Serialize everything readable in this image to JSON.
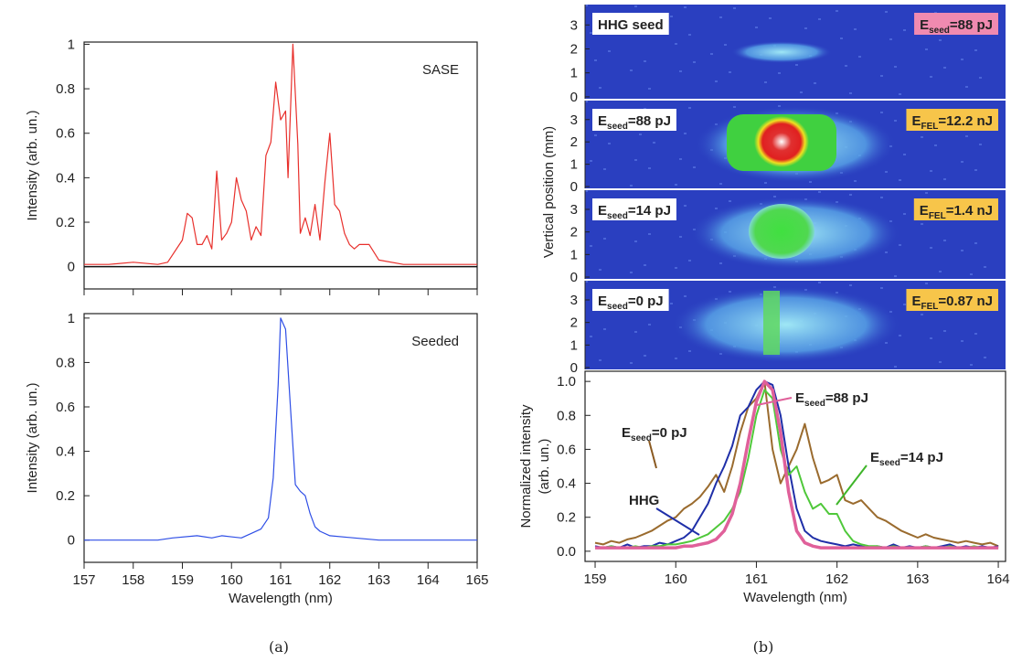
{
  "chart_data": [
    {
      "type": "line",
      "ylabel": "Intensity (arb. un.)",
      "annotation": "SASE",
      "color": "#e8302c",
      "xlim": [
        157,
        165
      ],
      "xticks": [
        157,
        158,
        159,
        160,
        161,
        162,
        163,
        164,
        165
      ],
      "xtick_labels": false,
      "ylim": [
        -0.1,
        1.01
      ],
      "yticks": [
        0,
        0.2,
        0.4,
        0.6,
        0.8,
        1
      ],
      "zero_line": true,
      "x": [
        157.0,
        157.5,
        158.0,
        158.5,
        158.7,
        159.0,
        159.1,
        159.2,
        159.3,
        159.4,
        159.5,
        159.6,
        159.7,
        159.8,
        159.9,
        160.0,
        160.1,
        160.2,
        160.3,
        160.4,
        160.5,
        160.6,
        160.7,
        160.8,
        160.9,
        161.0,
        161.1,
        161.15,
        161.25,
        161.35,
        161.4,
        161.5,
        161.6,
        161.7,
        161.8,
        161.9,
        162.0,
        162.1,
        162.2,
        162.3,
        162.4,
        162.5,
        162.6,
        162.8,
        163.0,
        163.5,
        164.0,
        164.5,
        165.0
      ],
      "values": [
        0.01,
        0.01,
        0.02,
        0.01,
        0.02,
        0.12,
        0.24,
        0.22,
        0.1,
        0.1,
        0.14,
        0.08,
        0.43,
        0.12,
        0.15,
        0.2,
        0.4,
        0.3,
        0.25,
        0.12,
        0.18,
        0.14,
        0.5,
        0.56,
        0.83,
        0.66,
        0.7,
        0.4,
        1.0,
        0.55,
        0.15,
        0.22,
        0.14,
        0.28,
        0.12,
        0.38,
        0.6,
        0.28,
        0.25,
        0.15,
        0.1,
        0.08,
        0.1,
        0.1,
        0.03,
        0.01,
        0.01,
        0.01,
        0.01
      ]
    },
    {
      "type": "line",
      "ylabel": "Intensity (arb. un.)",
      "xlabel": "Wavelength (nm)",
      "annotation": "Seeded",
      "color": "#2e4ee6",
      "xlim": [
        157,
        165
      ],
      "xticks": [
        157,
        158,
        159,
        160,
        161,
        162,
        163,
        164,
        165
      ],
      "xtick_labels": true,
      "ylim": [
        -0.1,
        1.02
      ],
      "yticks": [
        0,
        0.2,
        0.4,
        0.6,
        0.8,
        1
      ],
      "zero_line": false,
      "x": [
        157.0,
        158.5,
        158.8,
        159.3,
        159.6,
        159.8,
        160.2,
        160.4,
        160.6,
        160.75,
        160.85,
        160.95,
        161.0,
        161.1,
        161.2,
        161.3,
        161.4,
        161.5,
        161.6,
        161.7,
        161.8,
        162.0,
        162.5,
        163.0,
        165.0
      ],
      "values": [
        0,
        0,
        0.01,
        0.02,
        0.01,
        0.02,
        0.01,
        0.03,
        0.05,
        0.1,
        0.28,
        0.7,
        1.0,
        0.95,
        0.6,
        0.25,
        0.22,
        0.2,
        0.12,
        0.06,
        0.04,
        0.02,
        0.01,
        0,
        0
      ]
    },
    {
      "type": "image",
      "ylabel": "Vertical position (mm)",
      "ylim": [
        -0.08,
        3.85
      ],
      "yticks": [
        0,
        1,
        2,
        3
      ],
      "left_label": {
        "parts": [
          "HHG seed"
        ],
        "color": "#1a2a9a",
        "box": "#ffffff"
      },
      "right_label": {
        "parts": [
          "E",
          "seed",
          "=88 pJ"
        ],
        "color": "#222222",
        "box": "#f08ab0"
      }
    },
    {
      "type": "image",
      "ylim": [
        -0.08,
        3.85
      ],
      "yticks": [
        0,
        1,
        2,
        3
      ],
      "left_label": {
        "parts": [
          "E",
          "seed",
          "=88 pJ"
        ],
        "color": "#e0609a",
        "box": "#ffffff"
      },
      "right_label": {
        "parts": [
          "E",
          "FEL",
          "=12.2 nJ"
        ],
        "color": "#222222",
        "box": "#f7c54a"
      }
    },
    {
      "type": "image",
      "ylim": [
        -0.08,
        3.85
      ],
      "yticks": [
        0,
        1,
        2,
        3
      ],
      "left_label": {
        "parts": [
          "E",
          "seed",
          "=14 pJ"
        ],
        "color": "#3fb52a",
        "box": "#ffffff"
      },
      "right_label": {
        "parts": [
          "E",
          "FEL",
          "=1.4 nJ"
        ],
        "color": "#222222",
        "box": "#f7c54a"
      }
    },
    {
      "type": "image",
      "ylim": [
        -0.08,
        3.85
      ],
      "yticks": [
        0,
        1,
        2,
        3
      ],
      "left_label": {
        "parts": [
          "E",
          "seed",
          "=0 pJ"
        ],
        "color": "#8a5a22",
        "box": "#ffffff"
      },
      "right_label": {
        "parts": [
          "E",
          "FEL",
          "=0.87 nJ"
        ],
        "color": "#222222",
        "box": "#f7c54a"
      }
    },
    {
      "type": "multiline",
      "ylabel": [
        "Normalized intensity",
        "(arb. un.)"
      ],
      "xlabel": "Wavelength (nm)",
      "xlim": [
        158.875,
        164.09
      ],
      "xticks": [
        159,
        160,
        161,
        162,
        163,
        164
      ],
      "xtick_labels": true,
      "ylim": [
        -0.06,
        1.06
      ],
      "yticks": [
        {
          "value": 0,
          "label": "0.0"
        },
        0.2,
        0.4,
        0.6,
        0.8,
        {
          "value": 1,
          "label": "1.0"
        }
      ],
      "x": [
        159.0,
        159.1,
        159.2,
        159.3,
        159.4,
        159.5,
        159.6,
        159.7,
        159.8,
        159.9,
        160.0,
        160.1,
        160.2,
        160.3,
        160.4,
        160.5,
        160.6,
        160.7,
        160.8,
        160.9,
        161.0,
        161.1,
        161.2,
        161.3,
        161.4,
        161.5,
        161.6,
        161.7,
        161.8,
        161.9,
        162.0,
        162.1,
        162.2,
        162.3,
        162.4,
        162.5,
        162.6,
        162.7,
        162.8,
        162.9,
        163.0,
        163.1,
        163.2,
        163.3,
        163.4,
        163.5,
        163.6,
        163.7,
        163.8,
        163.9,
        164.0
      ],
      "series": [
        {
          "color": "#9a6b2e",
          "values": [
            0.05,
            0.04,
            0.06,
            0.05,
            0.07,
            0.08,
            0.1,
            0.12,
            0.15,
            0.18,
            0.2,
            0.25,
            0.28,
            0.32,
            0.38,
            0.45,
            0.35,
            0.5,
            0.7,
            0.85,
            0.9,
            1.0,
            0.6,
            0.4,
            0.5,
            0.6,
            0.75,
            0.55,
            0.4,
            0.42,
            0.45,
            0.3,
            0.28,
            0.3,
            0.25,
            0.2,
            0.18,
            0.15,
            0.12,
            0.1,
            0.08,
            0.1,
            0.08,
            0.07,
            0.06,
            0.05,
            0.06,
            0.05,
            0.04,
            0.05,
            0.03
          ]
        },
        {
          "color": "#1f2fa8",
          "values": [
            0.03,
            0.02,
            0.03,
            0.02,
            0.04,
            0.02,
            0.03,
            0.03,
            0.05,
            0.04,
            0.06,
            0.08,
            0.12,
            0.2,
            0.28,
            0.4,
            0.5,
            0.62,
            0.8,
            0.85,
            0.95,
            1.0,
            0.98,
            0.8,
            0.5,
            0.25,
            0.12,
            0.08,
            0.06,
            0.05,
            0.04,
            0.03,
            0.04,
            0.03,
            0.02,
            0.03,
            0.02,
            0.04,
            0.02,
            0.03,
            0.02,
            0.03,
            0.02,
            0.03,
            0.04,
            0.02,
            0.03,
            0.02,
            0.03,
            0.02,
            0.03
          ]
        },
        {
          "color": "#4fc83a",
          "values": [
            0.02,
            0.02,
            0.03,
            0.02,
            0.02,
            0.03,
            0.02,
            0.03,
            0.03,
            0.04,
            0.04,
            0.05,
            0.06,
            0.08,
            0.1,
            0.14,
            0.18,
            0.25,
            0.35,
            0.55,
            0.8,
            0.95,
            0.9,
            0.6,
            0.45,
            0.5,
            0.35,
            0.25,
            0.28,
            0.22,
            0.22,
            0.12,
            0.06,
            0.04,
            0.03,
            0.03,
            0.02,
            0.03,
            0.02,
            0.02,
            0.02,
            0.03,
            0.02,
            0.02,
            0.03,
            0.02,
            0.02,
            0.03,
            0.02,
            0.02,
            0.02
          ]
        },
        {
          "color": "#e0609a",
          "values": [
            0.02,
            0.02,
            0.02,
            0.02,
            0.02,
            0.02,
            0.02,
            0.02,
            0.02,
            0.02,
            0.02,
            0.03,
            0.03,
            0.04,
            0.05,
            0.07,
            0.12,
            0.22,
            0.4,
            0.65,
            0.88,
            1.0,
            0.95,
            0.7,
            0.35,
            0.12,
            0.05,
            0.03,
            0.02,
            0.02,
            0.02,
            0.02,
            0.02,
            0.02,
            0.02,
            0.02,
            0.02,
            0.02,
            0.02,
            0.02,
            0.02,
            0.02,
            0.02,
            0.02,
            0.02,
            0.02,
            0.02,
            0.02,
            0.02,
            0.02,
            0.02
          ]
        }
      ],
      "annotations": [
        {
          "parts": [
            "E",
            "seed",
            "=88 pJ"
          ],
          "color": "#e0609a"
        },
        {
          "parts": [
            "E",
            "seed",
            "=0 pJ"
          ],
          "color": "#8a5a22"
        },
        {
          "parts": [
            "E",
            "seed",
            "=14 pJ"
          ],
          "color": "#3fb52a"
        },
        {
          "parts": [
            "HHG"
          ],
          "color": "#1f2fa8"
        }
      ]
    }
  ],
  "captions": [
    "(a)",
    "(b)"
  ]
}
